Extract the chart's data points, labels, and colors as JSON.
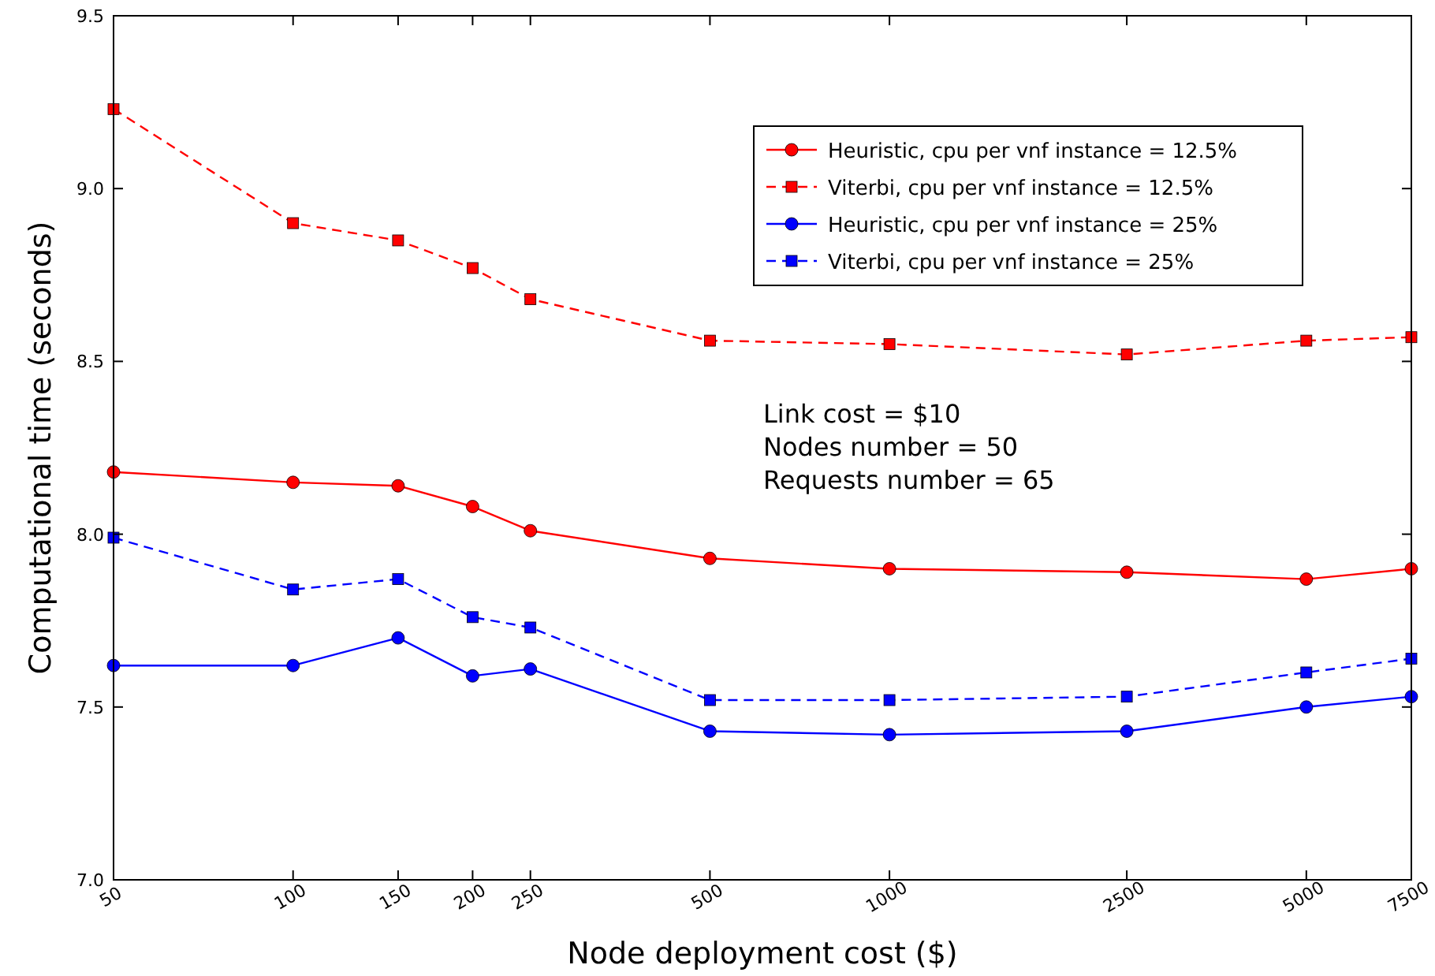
{
  "chart_data": {
    "type": "line",
    "xlabel": "Node deployment cost ($)",
    "ylabel": "Computational time (seconds)",
    "log": "x",
    "x": [
      50,
      100,
      150,
      200,
      250,
      500,
      1000,
      2500,
      5000,
      7500
    ],
    "xlim": [
      50,
      7500
    ],
    "xticks": [
      50,
      100,
      150,
      200,
      250,
      500,
      1000,
      2500,
      5000,
      7500
    ],
    "ylim": [
      7.0,
      9.5
    ],
    "yticks": [
      {
        "value": 7,
        "label": "7.0"
      },
      7.5,
      {
        "value": 8,
        "label": "8.0"
      },
      8.5,
      {
        "value": 9,
        "label": "9.0"
      },
      9.5
    ],
    "grid": false,
    "legend": "top right",
    "series": [
      {
        "name": "Heuristic, cpu per vnf instance = 12.5%",
        "color": "#ff0000",
        "marker": "circle",
        "line_style": "solid",
        "values": [
          8.18,
          8.15,
          8.14,
          8.08,
          8.01,
          7.93,
          7.9,
          7.89,
          7.87,
          7.9
        ]
      },
      {
        "name": "Viterbi, cpu per vnf instance = 12.5%",
        "color": "#ff0000",
        "marker": "square",
        "line_style": "dashed",
        "values": [
          9.23,
          8.9,
          8.85,
          8.77,
          8.68,
          8.56,
          8.55,
          8.52,
          8.56,
          8.57
        ]
      },
      {
        "name": "Heuristic, cpu per vnf instance = 25%",
        "color": "#0000ff",
        "marker": "circle",
        "line_style": "solid",
        "values": [
          7.62,
          7.62,
          7.7,
          7.59,
          7.61,
          7.43,
          7.42,
          7.43,
          7.5,
          7.53
        ]
      },
      {
        "name": "Viterbi, cpu per vnf instance = 25%",
        "color": "#0000ff",
        "marker": "square",
        "line_style": "dashed",
        "values": [
          7.99,
          7.84,
          7.87,
          7.76,
          7.73,
          7.52,
          7.52,
          7.53,
          7.6,
          7.64
        ]
      }
    ],
    "annotations": [
      "Link cost = $10",
      "Nodes number = 50",
      "Requests number = 65"
    ]
  }
}
